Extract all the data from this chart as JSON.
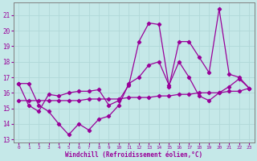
{
  "xlabel": "Windchill (Refroidissement éolien,°C)",
  "xlim": [
    -0.5,
    23.5
  ],
  "ylim": [
    12.8,
    21.8
  ],
  "yticks": [
    13,
    14,
    15,
    16,
    17,
    18,
    19,
    20,
    21
  ],
  "xticks": [
    0,
    1,
    2,
    3,
    4,
    5,
    6,
    7,
    8,
    9,
    10,
    11,
    12,
    13,
    14,
    15,
    16,
    17,
    18,
    19,
    20,
    21,
    22,
    23
  ],
  "bg_color": "#c5e8e8",
  "line_color": "#990099",
  "grid_color": "#b0d8d8",
  "line1_x": [
    0,
    1,
    2,
    3,
    4,
    5,
    6,
    7,
    8,
    9,
    10,
    11,
    12,
    13,
    14,
    15,
    16,
    17,
    18,
    19,
    20,
    21,
    22,
    23
  ],
  "line1_y": [
    16.6,
    16.6,
    15.2,
    14.8,
    14.0,
    13.3,
    14.0,
    13.6,
    14.3,
    14.5,
    15.2,
    16.6,
    17.0,
    17.8,
    18.0,
    16.5,
    18.0,
    17.0,
    15.8,
    15.5,
    16.0,
    16.4,
    16.9,
    16.3
  ],
  "line2_x": [
    0,
    1,
    2,
    3,
    4,
    5,
    6,
    7,
    8,
    9,
    10,
    11,
    12,
    13,
    14,
    15,
    16,
    17,
    18,
    19,
    20,
    21,
    22,
    23
  ],
  "line2_y": [
    16.6,
    15.2,
    14.8,
    15.9,
    15.8,
    16.0,
    16.1,
    16.1,
    16.2,
    15.2,
    15.5,
    16.5,
    19.3,
    20.5,
    20.4,
    16.4,
    19.3,
    19.3,
    18.3,
    17.3,
    21.4,
    17.2,
    17.0,
    16.3
  ],
  "line3_x": [
    0,
    1,
    2,
    3,
    4,
    5,
    6,
    7,
    8,
    9,
    10,
    11,
    12,
    13,
    14,
    15,
    16,
    17,
    18,
    19,
    20,
    21,
    22,
    23
  ],
  "line3_y": [
    15.5,
    15.5,
    15.5,
    15.5,
    15.5,
    15.5,
    15.5,
    15.6,
    15.6,
    15.6,
    15.6,
    15.7,
    15.7,
    15.7,
    15.8,
    15.8,
    15.9,
    15.9,
    16.0,
    16.0,
    16.0,
    16.1,
    16.1,
    16.3
  ]
}
